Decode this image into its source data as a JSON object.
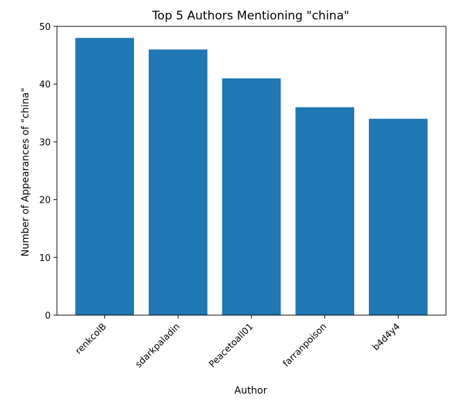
{
  "chart_data": {
    "type": "bar",
    "title": "Top 5 Authors Mentioning \"china\"",
    "xlabel": "Author",
    "ylabel": "Number of Appearances of \"china\"",
    "categories": [
      "renkcolB",
      "sdarkpaladin",
      "Peacetoall01",
      "farranpoison",
      "b4d4y4"
    ],
    "values": [
      48,
      46,
      41,
      36,
      34
    ],
    "ylim": [
      0,
      50
    ],
    "yticks": [
      0,
      10,
      20,
      30,
      40,
      50
    ],
    "bar_color": "#1f77b4",
    "grid": false,
    "legend": "none"
  }
}
